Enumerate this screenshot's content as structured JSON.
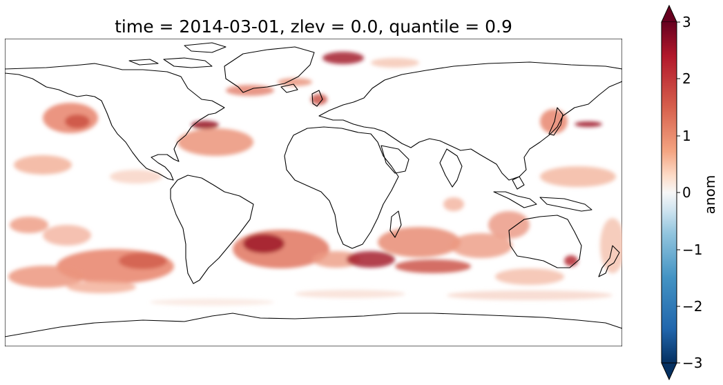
{
  "title": "time = 2014-03-01, zlev = 0.0, quantile = 0.9",
  "colorbar": {
    "label": "anom",
    "ticks": [
      "3",
      "2",
      "1",
      "0",
      "−1",
      "−2",
      "−3"
    ],
    "range": [
      -3,
      3
    ],
    "colormap": "RdBu_r",
    "extend": "both",
    "colors": {
      "max": "#67001f",
      "high": "#d6604d",
      "mid_pos": "#f4a582",
      "zero": "#f7f7f7",
      "mid_neg": "#92c5de",
      "low": "#2166ac",
      "min": "#053061"
    }
  },
  "map": {
    "projection": "PlateCarree",
    "extent": "global",
    "features": [
      "coastlines"
    ]
  }
}
